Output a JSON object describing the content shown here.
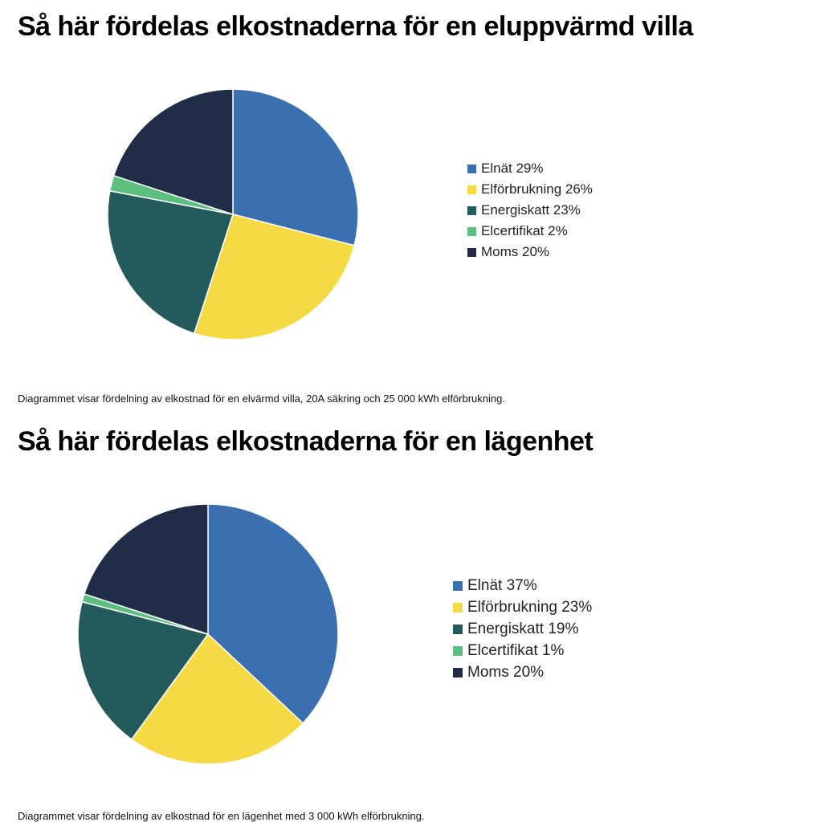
{
  "colors": {
    "Elnät": "#3a6fb0",
    "Elförbrukning": "#f5da45",
    "Energiskatt": "#235a5c",
    "Elcertifikat": "#5cbf7f",
    "Moms": "#212d48"
  },
  "chart_data": [
    {
      "type": "pie",
      "title": "Så här fördelas elkostnaderna för en eluppvärmd villa",
      "categories": [
        "Elnät",
        "Elförbrukning",
        "Energiskatt",
        "Elcertifikat",
        "Moms"
      ],
      "values": [
        29,
        26,
        23,
        2,
        20
      ],
      "legend_labels": [
        "Elnät 29%",
        "Elförbrukning 26%",
        "Energiskatt 23%",
        "Elcertifikat 2%",
        "Moms 20%"
      ],
      "legend": "right",
      "caption": "Diagrammet visar fördelning av elkostnad för en elvärmd villa, 20A säkring och 25 000 kWh elförbrukning."
    },
    {
      "type": "pie",
      "title": "Så här fördelas elkostnaderna för en lägenhet",
      "categories": [
        "Elnät",
        "Elförbrukning",
        "Energiskatt",
        "Elcertifikat",
        "Moms"
      ],
      "values": [
        37,
        23,
        19,
        1,
        20
      ],
      "legend_labels": [
        "Elnät 37%",
        "Elförbrukning 23%",
        "Energiskatt 19%",
        "Elcertifikat 1%",
        "Moms 20%"
      ],
      "legend": "right",
      "caption": "Diagrammet visar fördelning av elkostnad för en lägenhet med 3 000 kWh elförbrukning."
    }
  ]
}
